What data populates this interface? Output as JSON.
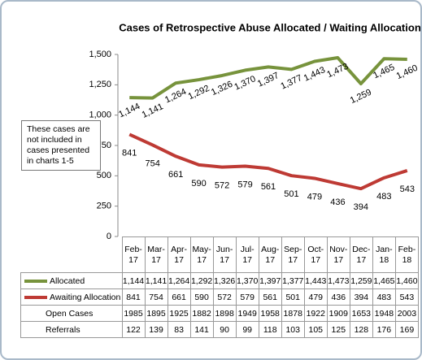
{
  "chart_data": {
    "type": "line",
    "title": "Cases of Retrospective Abuse Allocated / Waiting Allocation",
    "annotation": "These cases are not included in cases presented in charts 1-5",
    "categories": [
      "Feb-17",
      "Mar-17",
      "Apr-17",
      "May-17",
      "Jun-17",
      "Jul-17",
      "Aug-17",
      "Sep-17",
      "Oct-17",
      "Nov-17",
      "Dec-17",
      "Jan-18",
      "Feb-18"
    ],
    "series": [
      {
        "name": "Allocated",
        "color": "#77933c",
        "values": [
          1144,
          1141,
          1264,
          1292,
          1326,
          1370,
          1397,
          1377,
          1443,
          1473,
          1259,
          1465,
          1460
        ],
        "value_labels": [
          "1,144",
          "1,141",
          "1,264",
          "1,292",
          "1,326",
          "1,370",
          "1,397",
          "1,377",
          "1,443",
          "1,473",
          "1,259",
          "1,465",
          "1,460"
        ]
      },
      {
        "name": "Awaiting Allocation",
        "color": "#be3a34",
        "values": [
          841,
          754,
          661,
          590,
          572,
          579,
          561,
          501,
          479,
          436,
          394,
          483,
          543
        ]
      }
    ],
    "table_rows": [
      {
        "name": "Open Cases",
        "values": [
          1985,
          1895,
          1925,
          1882,
          1898,
          1949,
          1958,
          1878,
          1922,
          1909,
          1653,
          1948,
          2003
        ]
      },
      {
        "name": "Referrals",
        "values": [
          122,
          139,
          83,
          141,
          90,
          99,
          118,
          103,
          105,
          125,
          128,
          176,
          169
        ]
      }
    ],
    "ylim": [
      0,
      1500
    ],
    "yticks": [
      0,
      250,
      500,
      750,
      {
        "value": 1000,
        "label": "1,000"
      },
      {
        "value": 1250,
        "label": "1,250"
      },
      {
        "value": 1500,
        "label": "1,500"
      }
    ]
  }
}
